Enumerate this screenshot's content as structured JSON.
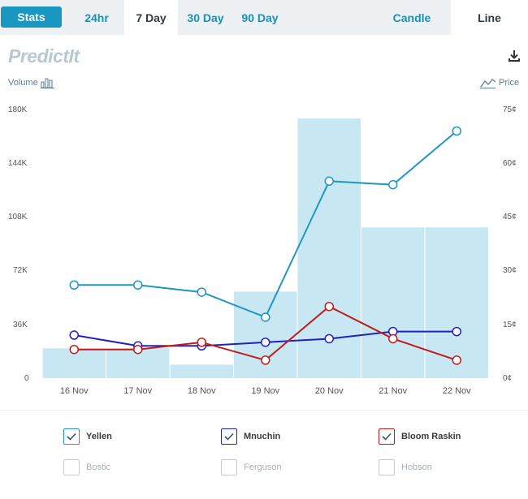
{
  "tabs": {
    "stats": "Stats",
    "ranges": [
      "24hr",
      "7 Day",
      "30 Day",
      "90 Day"
    ],
    "active_range": "7 Day",
    "modes": [
      "Candle",
      "Line"
    ],
    "active_mode": "Line"
  },
  "brand": {
    "logo": "PredictIt"
  },
  "icons": {
    "download": "download-icon",
    "volume": "bar-chart-icon",
    "price": "line-chart-icon"
  },
  "colors": {
    "accent": "#1a96c2",
    "volume_bar": "#c7e8f2",
    "yellen": "#2196c4",
    "mnuchin": "#2222bb",
    "bloom_raskin": "#c01c1c"
  },
  "chart_data": {
    "type": "line",
    "categories": [
      "16 Nov",
      "17 Nov",
      "18 Nov",
      "19 Nov",
      "20 Nov",
      "21 Nov",
      "22 Nov"
    ],
    "volume_axis": {
      "label": "Volume",
      "ticks": [
        "0",
        "36K",
        "72K",
        "108K",
        "144K",
        "180K"
      ],
      "ylim": [
        0,
        180000
      ]
    },
    "price_axis": {
      "label": "Price",
      "ticks": [
        "0¢",
        "15¢",
        "30¢",
        "45¢",
        "60¢",
        "75¢"
      ],
      "ylim": [
        0,
        75
      ]
    },
    "volume": [
      20000,
      20000,
      9000,
      58000,
      174000,
      101000,
      101000
    ],
    "series": [
      {
        "name": "Yellen",
        "color": "#2196c4",
        "values": [
          26,
          26,
          24,
          17,
          55,
          54,
          69
        ]
      },
      {
        "name": "Mnuchin",
        "color": "#2222bb",
        "values": [
          12,
          9,
          9,
          10,
          11,
          13,
          13
        ]
      },
      {
        "name": "Bloom Raskin",
        "color": "#c01c1c",
        "values": [
          8,
          8,
          10,
          5,
          20,
          11,
          5
        ]
      }
    ]
  },
  "legend": [
    {
      "name": "Yellen",
      "checked": true,
      "color": "#2196c4"
    },
    {
      "name": "Mnuchin",
      "checked": true,
      "color": "#2222bb"
    },
    {
      "name": "Bloom Raskin",
      "checked": true,
      "color": "#c01c1c"
    },
    {
      "name": "Bostic",
      "checked": false,
      "color": "#c9c9c9"
    },
    {
      "name": "Ferguson",
      "checked": false,
      "color": "#c9c9c9"
    },
    {
      "name": "Hobson",
      "checked": false,
      "color": "#c9c9c9"
    }
  ]
}
